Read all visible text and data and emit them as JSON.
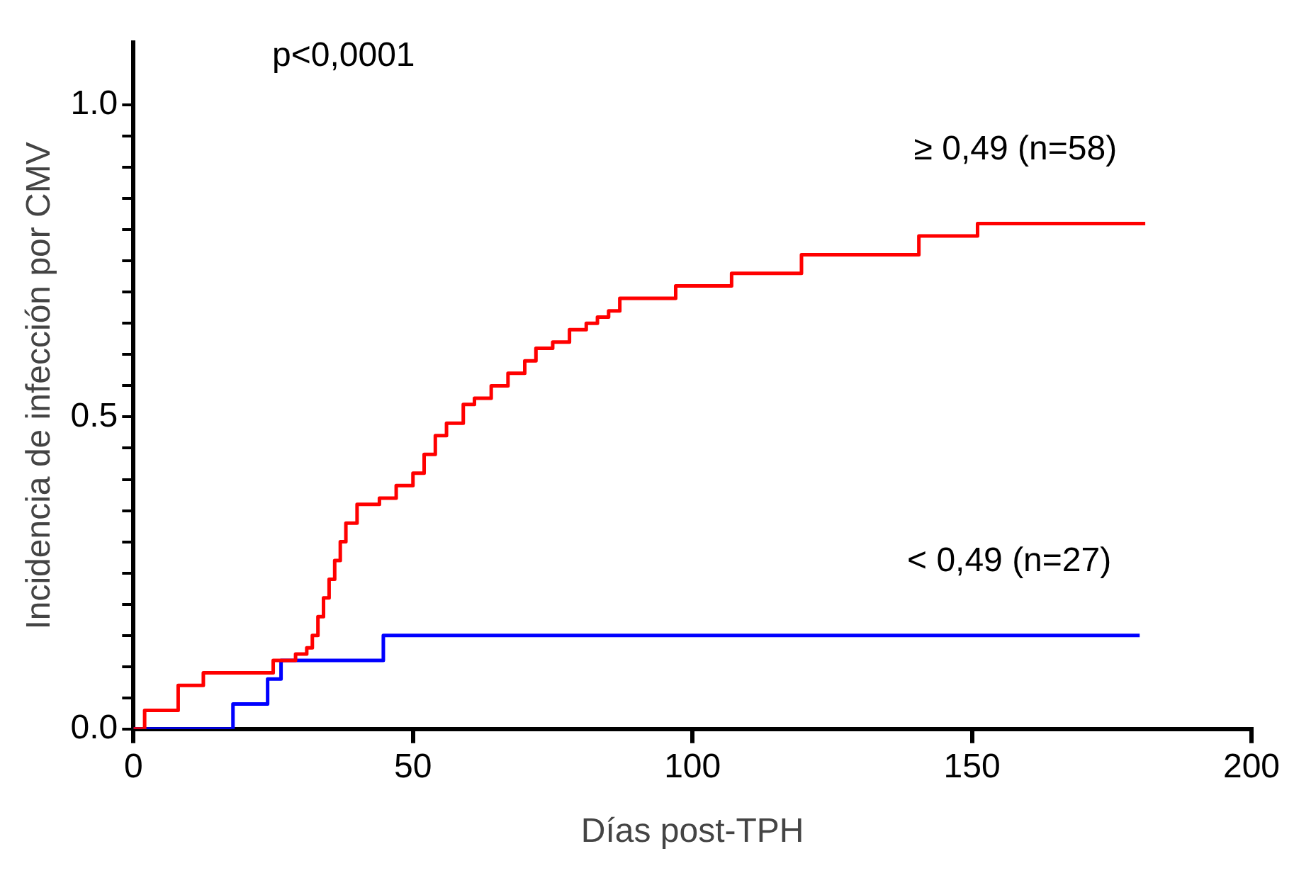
{
  "chart_data": {
    "type": "step",
    "xlabel": "Días post-TPH",
    "ylabel": "Incidencia de infección por CMV",
    "annotations": [
      "p<0,0001"
    ],
    "xlim": [
      0,
      200
    ],
    "xticks": [
      0,
      50,
      100,
      150,
      200
    ],
    "ylim": [
      0,
      1.1
    ],
    "yticks": [
      {
        "value": 0,
        "label": "0.0"
      },
      {
        "value": 0.05,
        "label": null
      },
      {
        "value": 0.1,
        "label": null
      },
      {
        "value": 0.15,
        "label": null
      },
      {
        "value": 0.2,
        "label": null
      },
      {
        "value": 0.25,
        "label": null
      },
      {
        "value": 0.3,
        "label": null
      },
      {
        "value": 0.35,
        "label": null
      },
      {
        "value": 0.4,
        "label": null
      },
      {
        "value": 0.45,
        "label": null
      },
      {
        "value": 0.5,
        "label": "0.5"
      },
      {
        "value": 0.55,
        "label": null
      },
      {
        "value": 0.6,
        "label": null
      },
      {
        "value": 0.65,
        "label": null
      },
      {
        "value": 0.7,
        "label": null
      },
      {
        "value": 0.75,
        "label": null
      },
      {
        "value": 0.8,
        "label": null
      },
      {
        "value": 0.85,
        "label": null
      },
      {
        "value": 0.9,
        "label": null
      },
      {
        "value": 0.95,
        "label": null
      },
      {
        "value": 1,
        "label": "1.0"
      }
    ],
    "grid": false,
    "legend": false,
    "marker": "none",
    "line_style": "solid",
    "series": [
      {
        "name": "≥ 0,49 (n=58)",
        "color": "#ff0000",
        "x": [
          0,
          2,
          8,
          12.5,
          25,
          29,
          31,
          32,
          33,
          34,
          35,
          36,
          37,
          38,
          40,
          44,
          47,
          50,
          52,
          54,
          56,
          59,
          61,
          64,
          67,
          70,
          72,
          75,
          78,
          81,
          83,
          85,
          87,
          97,
          107,
          119.5,
          140.5,
          151,
          181
        ],
        "values": [
          0,
          0.03,
          0.07,
          0.09,
          0.11,
          0.12,
          0.13,
          0.15,
          0.18,
          0.21,
          0.24,
          0.27,
          0.3,
          0.33,
          0.36,
          0.37,
          0.39,
          0.41,
          0.44,
          0.47,
          0.49,
          0.52,
          0.53,
          0.55,
          0.57,
          0.59,
          0.61,
          0.62,
          0.64,
          0.65,
          0.66,
          0.67,
          0.69,
          0.71,
          0.73,
          0.76,
          0.79,
          0.81,
          0.81
        ]
      },
      {
        "name": "< 0,49 (n=27)",
        "color": "#0000ff",
        "x": [
          0,
          17.8,
          24,
          26.4,
          44.7,
          180
        ],
        "values": [
          0,
          0.04,
          0.08,
          0.11,
          0.15,
          0.15
        ]
      }
    ]
  }
}
